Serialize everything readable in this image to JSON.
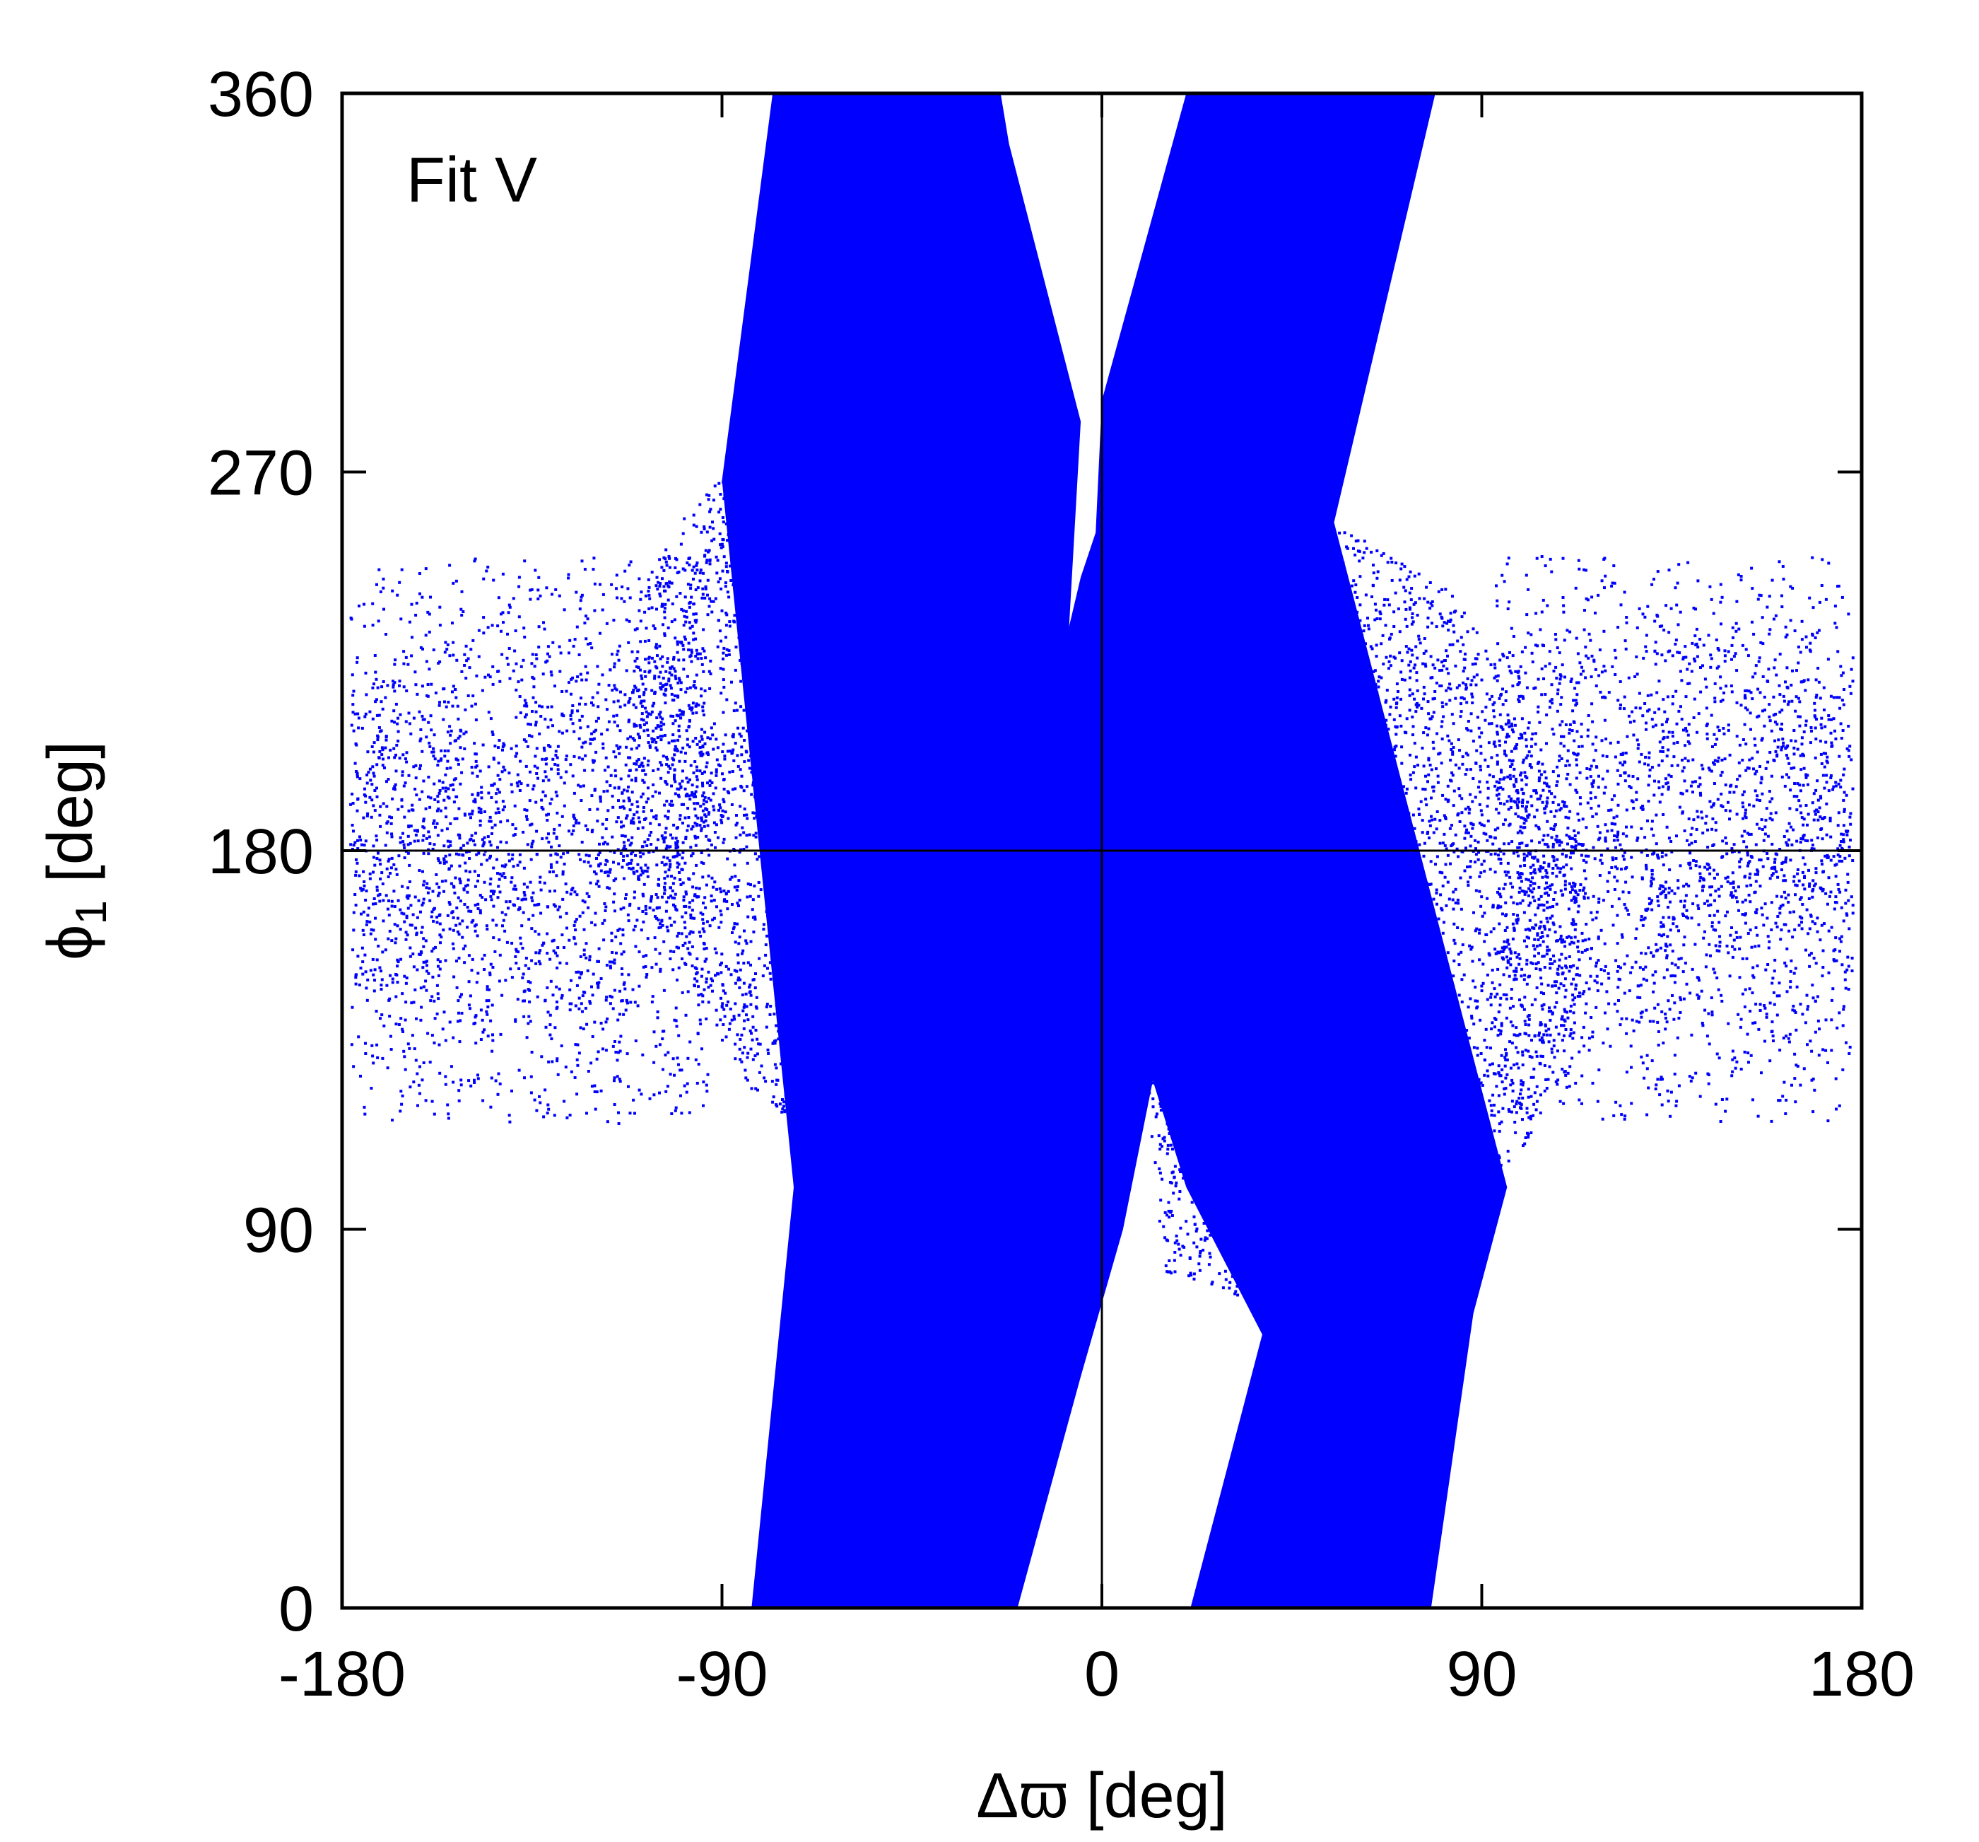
{
  "chart_data": {
    "type": "scatter",
    "title": "",
    "annotation": "Fit V",
    "xlabel": "Δϖ [deg]",
    "ylabel_main": "ϕ",
    "ylabel_sub": "1",
    "ylabel_rest": " [deg]",
    "xlim": [
      -180,
      180
    ],
    "ylim": [
      0,
      360
    ],
    "xticks": [
      -180,
      -90,
      0,
      90,
      180
    ],
    "yticks": [
      0,
      90,
      180,
      270,
      360
    ],
    "xtick_labels": [
      "-180",
      "-90",
      "0",
      "90",
      "180"
    ],
    "ytick_labels": [
      "0",
      "90",
      "180",
      "270",
      "360"
    ],
    "reference_lines": {
      "x": 0,
      "y": 180
    },
    "point_color": "#0000ff",
    "regions": {
      "solid_band_left": [
        [
          -83,
          0
        ],
        [
          -21,
          0
        ],
        [
          -5,
          282
        ],
        [
          -22,
          348
        ],
        [
          -24,
          360
        ],
        [
          -78,
          360
        ],
        [
          -90,
          268
        ],
        [
          -73,
          100
        ]
      ],
      "solid_band_center_lower": [
        [
          -53,
          0
        ],
        [
          -20,
          0
        ],
        [
          -5,
          55
        ],
        [
          5,
          90
        ],
        [
          15,
          140
        ],
        [
          25,
          180
        ],
        [
          -20,
          180
        ],
        [
          -40,
          110
        ],
        [
          -50,
          60
        ]
      ],
      "solid_band_center": [
        [
          -20,
          100
        ],
        [
          -5,
          55
        ],
        [
          15,
          140
        ],
        [
          40,
          260
        ],
        [
          45,
          300
        ],
        [
          55,
          360
        ],
        [
          22,
          360
        ],
        [
          10,
          290
        ],
        [
          -5,
          245
        ],
        [
          -25,
          160
        ]
      ],
      "solid_band_right": [
        [
          21,
          0
        ],
        [
          78,
          0
        ],
        [
          88,
          70
        ],
        [
          96,
          100
        ],
        [
          55,
          258
        ],
        [
          79,
          360
        ],
        [
          20,
          360
        ],
        [
          0,
          287
        ],
        [
          -5,
          180
        ],
        [
          20,
          100
        ],
        [
          38,
          65
        ]
      ],
      "dense_halo_left": [
        [
          -100,
          258
        ],
        [
          -60,
          300
        ],
        [
          -15,
          280
        ],
        [
          -10,
          220
        ],
        [
          -20,
          120
        ],
        [
          -55,
          100
        ],
        [
          -85,
          125
        ],
        [
          -115,
          180
        ],
        [
          -110,
          240
        ]
      ],
      "dense_halo_right": [
        [
          100,
          110
        ],
        [
          60,
          65
        ],
        [
          15,
          80
        ],
        [
          8,
          140
        ],
        [
          20,
          250
        ],
        [
          55,
          258
        ],
        [
          85,
          240
        ],
        [
          115,
          180
        ],
        [
          112,
          130
        ]
      ],
      "sparse_wings": {
        "y_range": [
          115,
          250
        ]
      }
    }
  }
}
